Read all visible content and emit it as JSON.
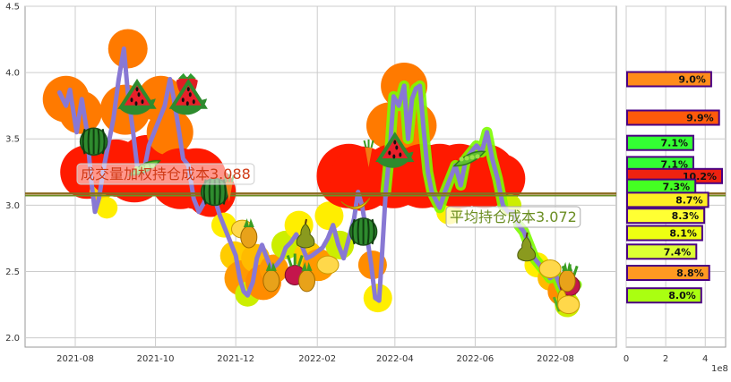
{
  "colors": {
    "background": "#ffffff",
    "grid": "#cccccc",
    "axis": "#999999",
    "price_line": "#8878d4",
    "avg_line": "#8b6a1f",
    "avg_line_inner": "#6b8e23",
    "bar_edge": "#4b0082"
  },
  "chart_data": [
    {
      "type": "line",
      "x_ticks": [
        "2021-08",
        "2021-10",
        "2021-12",
        "2022-02",
        "2022-04",
        "2022-06",
        "2022-08"
      ],
      "y_ticks": [
        "2.0",
        "2.5",
        "3.0",
        "3.5",
        "4.0",
        "4.5"
      ],
      "ylim": [
        1.93,
        4.5
      ],
      "series": [
        {
          "values": [
            [
              "2021-07-20",
              3.85
            ],
            [
              "2021-07-25",
              3.75
            ],
            [
              "2021-07-28",
              3.87
            ],
            [
              "2021-08-02",
              3.55
            ],
            [
              "2021-08-06",
              3.8
            ],
            [
              "2021-08-10",
              3.55
            ],
            [
              "2021-08-13",
              3.2
            ],
            [
              "2021-08-16",
              2.95
            ],
            [
              "2021-08-19",
              3.05
            ],
            [
              "2021-08-23",
              3.3
            ],
            [
              "2021-08-26",
              3.45
            ],
            [
              "2021-08-30",
              3.65
            ],
            [
              "2021-09-03",
              3.95
            ],
            [
              "2021-09-07",
              4.18
            ],
            [
              "2021-09-10",
              3.85
            ],
            [
              "2021-09-14",
              3.55
            ],
            [
              "2021-09-17",
              3.3
            ],
            [
              "2021-09-22",
              3.25
            ],
            [
              "2021-09-26",
              3.45
            ],
            [
              "2021-09-30",
              3.55
            ],
            [
              "2021-10-08",
              3.75
            ],
            [
              "2021-10-12",
              3.95
            ],
            [
              "2021-10-15",
              3.8
            ],
            [
              "2021-10-19",
              3.55
            ],
            [
              "2021-10-22",
              3.35
            ],
            [
              "2021-10-26",
              3.3
            ],
            [
              "2021-10-30",
              3.05
            ],
            [
              "2021-11-03",
              2.95
            ],
            [
              "2021-11-07",
              3.02
            ],
            [
              "2021-11-11",
              3.15
            ],
            [
              "2021-11-15",
              3.05
            ],
            [
              "2021-11-19",
              2.92
            ],
            [
              "2021-11-23",
              2.82
            ],
            [
              "2021-11-27",
              2.72
            ],
            [
              "2021-12-01",
              2.62
            ],
            [
              "2021-12-04",
              2.45
            ],
            [
              "2021-12-07",
              2.35
            ],
            [
              "2021-12-10",
              2.32
            ],
            [
              "2021-12-14",
              2.42
            ],
            [
              "2021-12-17",
              2.6
            ],
            [
              "2021-12-21",
              2.7
            ],
            [
              "2021-12-24",
              2.62
            ],
            [
              "2021-12-28",
              2.52
            ],
            [
              "2022-01-01",
              2.55
            ],
            [
              "2022-01-05",
              2.6
            ],
            [
              "2022-01-08",
              2.68
            ],
            [
              "2022-01-12",
              2.72
            ],
            [
              "2022-01-16",
              2.78
            ],
            [
              "2022-01-20",
              2.7
            ],
            [
              "2022-01-24",
              2.6
            ],
            [
              "2022-01-28",
              2.62
            ],
            [
              "2022-02-05",
              2.68
            ],
            [
              "2022-02-09",
              2.75
            ],
            [
              "2022-02-13",
              2.85
            ],
            [
              "2022-02-17",
              2.7
            ],
            [
              "2022-02-21",
              2.6
            ],
            [
              "2022-02-25",
              2.75
            ],
            [
              "2022-03-01",
              2.9
            ],
            [
              "2022-03-04",
              3.1
            ],
            [
              "2022-03-07",
              3.0
            ],
            [
              "2022-03-10",
              2.82
            ],
            [
              "2022-03-14",
              2.55
            ],
            [
              "2022-03-17",
              2.3
            ],
            [
              "2022-03-20",
              2.28
            ],
            [
              "2022-03-22",
              2.6
            ],
            [
              "2022-03-25",
              3.1
            ],
            [
              "2022-03-28",
              3.4
            ],
            [
              "2022-03-31",
              3.82
            ],
            [
              "2022-04-04",
              3.75
            ],
            [
              "2022-04-08",
              3.9
            ],
            [
              "2022-04-11",
              3.5
            ],
            [
              "2022-04-14",
              3.8
            ],
            [
              "2022-04-17",
              3.88
            ],
            [
              "2022-04-20",
              3.9
            ],
            [
              "2022-04-23",
              3.55
            ],
            [
              "2022-04-26",
              3.25
            ],
            [
              "2022-04-29",
              3.1
            ],
            [
              "2022-05-05",
              2.98
            ],
            [
              "2022-05-09",
              3.1
            ],
            [
              "2022-05-13",
              3.2
            ],
            [
              "2022-05-17",
              3.3
            ],
            [
              "2022-05-21",
              3.15
            ],
            [
              "2022-05-25",
              3.35
            ],
            [
              "2022-05-29",
              3.4
            ],
            [
              "2022-06-02",
              3.45
            ],
            [
              "2022-06-06",
              3.4
            ],
            [
              "2022-06-10",
              3.55
            ],
            [
              "2022-06-14",
              3.35
            ],
            [
              "2022-06-18",
              3.2
            ],
            [
              "2022-06-22",
              3.0
            ],
            [
              "2022-06-26",
              2.95
            ],
            [
              "2022-06-30",
              2.95
            ],
            [
              "2022-07-04",
              2.85
            ],
            [
              "2022-07-08",
              2.8
            ],
            [
              "2022-07-12",
              2.7
            ],
            [
              "2022-07-16",
              2.6
            ],
            [
              "2022-07-20",
              2.55
            ],
            [
              "2022-07-24",
              2.5
            ],
            [
              "2022-07-28",
              2.45
            ],
            [
              "2022-08-01",
              2.48
            ],
            [
              "2022-08-05",
              2.38
            ],
            [
              "2022-08-09",
              2.3
            ],
            [
              "2022-08-13",
              2.35
            ],
            [
              "2022-08-17",
              2.4
            ]
          ]
        }
      ],
      "reference_lines": [
        {
          "label": "成交量加权持仓成本3.088",
          "value": 3.088
        },
        {
          "label": "平均持仓成本3.072",
          "value": 3.072
        }
      ]
    },
    {
      "type": "bar",
      "orientation": "horizontal",
      "x_ticks": [
        "0",
        "2",
        "4"
      ],
      "x_scale_label": "1e8",
      "xlim": [
        0,
        4.85
      ],
      "ylim": [
        1.93,
        4.5
      ],
      "bars": [
        {
          "price": 3.95,
          "value": 4.3,
          "label": "9.0%",
          "color": "#ff8c1a"
        },
        {
          "price": 3.66,
          "value": 4.7,
          "label": "9.9%",
          "color": "#ff5a0a"
        },
        {
          "price": 3.47,
          "value": 3.4,
          "label": "7.1%",
          "color": "#33ff33"
        },
        {
          "price": 3.31,
          "value": 3.4,
          "label": "7.1%",
          "color": "#33ff33"
        },
        {
          "price": 3.22,
          "value": 4.85,
          "label": "10.2%",
          "color": "#ee2211"
        },
        {
          "price": 3.14,
          "value": 3.5,
          "label": "7.3%",
          "color": "#44ff22"
        },
        {
          "price": 3.04,
          "value": 4.15,
          "label": "8.7%",
          "color": "#ffee22"
        },
        {
          "price": 2.92,
          "value": 3.95,
          "label": "8.3%",
          "color": "#ffff33"
        },
        {
          "price": 2.79,
          "value": 3.85,
          "label": "8.1%",
          "color": "#eeff11"
        },
        {
          "price": 2.65,
          "value": 3.55,
          "label": "7.4%",
          "color": "#ddff33"
        },
        {
          "price": 2.49,
          "value": 4.2,
          "label": "8.8%",
          "color": "#ff9922"
        },
        {
          "price": 2.32,
          "value": 3.8,
          "label": "8.0%",
          "color": "#aaff11"
        }
      ]
    }
  ],
  "blobs": [
    {
      "date": "2021-07-25",
      "price": 3.8,
      "r": 26,
      "color": "#ff7a00"
    },
    {
      "date": "2021-08-05",
      "price": 3.7,
      "r": 24,
      "color": "#ff7a00"
    },
    {
      "date": "2021-08-10",
      "price": 3.25,
      "r": 30,
      "color": "#ff1a00"
    },
    {
      "date": "2021-08-20",
      "price": 3.1,
      "r": 12,
      "color": "#ffcc00"
    },
    {
      "date": "2021-08-25",
      "price": 2.98,
      "r": 12,
      "color": "#ffee00"
    },
    {
      "date": "2021-09-01",
      "price": 3.28,
      "r": 32,
      "color": "#ff1a00"
    },
    {
      "date": "2021-09-08",
      "price": 3.72,
      "r": 28,
      "color": "#ff7a00"
    },
    {
      "date": "2021-09-10",
      "price": 4.18,
      "r": 22,
      "color": "#ff7a00"
    },
    {
      "date": "2021-09-15",
      "price": 3.25,
      "r": 34,
      "color": "#ff1a00"
    },
    {
      "date": "2021-09-25",
      "price": 3.3,
      "r": 34,
      "color": "#ff1a00"
    },
    {
      "date": "2021-10-05",
      "price": 3.8,
      "r": 26,
      "color": "#ff7a00"
    },
    {
      "date": "2021-10-12",
      "price": 3.55,
      "r": 26,
      "color": "#ff7a00"
    },
    {
      "date": "2021-10-20",
      "price": 3.2,
      "r": 34,
      "color": "#ff1a00"
    },
    {
      "date": "2021-11-01",
      "price": 3.2,
      "r": 34,
      "color": "#ff1a00"
    },
    {
      "date": "2021-11-12",
      "price": 3.1,
      "r": 28,
      "color": "#ff1a00"
    },
    {
      "date": "2021-11-22",
      "price": 2.85,
      "r": 14,
      "color": "#ffee00"
    },
    {
      "date": "2021-11-30",
      "price": 2.62,
      "r": 16,
      "color": "#ffcc00"
    },
    {
      "date": "2021-12-06",
      "price": 2.45,
      "r": 20,
      "color": "#ff9900"
    },
    {
      "date": "2021-12-10",
      "price": 2.33,
      "r": 14,
      "color": "#ccee00"
    },
    {
      "date": "2021-12-16",
      "price": 2.6,
      "r": 16,
      "color": "#ffbb00"
    },
    {
      "date": "2021-12-22",
      "price": 2.42,
      "r": 20,
      "color": "#ff8c00"
    },
    {
      "date": "2021-12-30",
      "price": 2.52,
      "r": 16,
      "color": "#ff9900"
    },
    {
      "date": "2022-01-08",
      "price": 2.7,
      "r": 16,
      "color": "#ccee00"
    },
    {
      "date": "2022-01-18",
      "price": 2.85,
      "r": 16,
      "color": "#ffee00"
    },
    {
      "date": "2022-01-25",
      "price": 2.62,
      "r": 16,
      "color": "#ffcc00"
    },
    {
      "date": "2022-02-02",
      "price": 2.55,
      "r": 18,
      "color": "#ff9900"
    },
    {
      "date": "2022-02-10",
      "price": 2.92,
      "r": 16,
      "color": "#ffee00"
    },
    {
      "date": "2022-02-18",
      "price": 2.7,
      "r": 16,
      "color": "#ccee00"
    },
    {
      "date": "2022-02-25",
      "price": 3.22,
      "r": 36,
      "color": "#ff1a00"
    },
    {
      "date": "2022-03-07",
      "price": 3.2,
      "r": 36,
      "color": "#ff1a00"
    },
    {
      "date": "2022-03-15",
      "price": 2.55,
      "r": 16,
      "color": "#ff8c00"
    },
    {
      "date": "2022-03-19",
      "price": 2.3,
      "r": 16,
      "color": "#ffee00"
    },
    {
      "date": "2022-03-28",
      "price": 3.6,
      "r": 26,
      "color": "#ff7a00"
    },
    {
      "date": "2022-03-31",
      "price": 3.22,
      "r": 36,
      "color": "#ff1a00"
    },
    {
      "date": "2022-04-08",
      "price": 3.9,
      "r": 26,
      "color": "#ff7a00"
    },
    {
      "date": "2022-04-15",
      "price": 3.6,
      "r": 26,
      "color": "#ff7a00"
    },
    {
      "date": "2022-04-22",
      "price": 3.22,
      "r": 36,
      "color": "#ff1a00"
    },
    {
      "date": "2022-05-05",
      "price": 3.22,
      "r": 36,
      "color": "#ff1a00"
    },
    {
      "date": "2022-05-12",
      "price": 2.95,
      "r": 14,
      "color": "#ffee00"
    },
    {
      "date": "2022-05-20",
      "price": 3.22,
      "r": 36,
      "color": "#ff1a00"
    },
    {
      "date": "2022-06-08",
      "price": 3.22,
      "r": 36,
      "color": "#ff1a00"
    },
    {
      "date": "2022-06-20",
      "price": 3.2,
      "r": 28,
      "color": "#ff1a00"
    },
    {
      "date": "2022-06-28",
      "price": 3.0,
      "r": 12,
      "color": "#ccee00"
    },
    {
      "date": "2022-07-18",
      "price": 2.55,
      "r": 14,
      "color": "#ffee00"
    },
    {
      "date": "2022-07-28",
      "price": 2.45,
      "r": 14,
      "color": "#ffbb00"
    },
    {
      "date": "2022-08-06",
      "price": 2.35,
      "r": 16,
      "color": "#ff8c00"
    },
    {
      "date": "2022-08-10",
      "price": 2.25,
      "r": 14,
      "color": "#ccee00"
    }
  ],
  "glow_segments": [
    {
      "start": "2022-03-24",
      "end": "2022-06-24",
      "color": "#7cfc00"
    },
    {
      "start": "2022-07-04",
      "end": "2022-08-17",
      "color": "#7cfc00"
    }
  ],
  "fruits": [
    {
      "type": "watermelon",
      "date": "2021-08-15",
      "price": 3.48
    },
    {
      "type": "watermelon-slice",
      "date": "2021-09-17",
      "price": 3.78
    },
    {
      "type": "strawberry",
      "date": "2021-10-25",
      "price": 3.9
    },
    {
      "type": "watermelon-slice",
      "date": "2021-10-26",
      "price": 3.78
    },
    {
      "type": "pea-pod",
      "date": "2021-09-22",
      "price": 3.28
    },
    {
      "type": "watermelon",
      "date": "2021-11-15",
      "price": 3.1
    },
    {
      "type": "carrot",
      "date": "2021-11-26",
      "price": 3.12
    },
    {
      "type": "lemon",
      "date": "2021-12-06",
      "price": 2.82
    },
    {
      "type": "pineapple",
      "date": "2021-12-11",
      "price": 2.78
    },
    {
      "type": "pear",
      "date": "2022-01-23",
      "price": 2.78
    },
    {
      "type": "beet",
      "date": "2022-01-15",
      "price": 2.5
    },
    {
      "type": "pineapple",
      "date": "2022-01-24",
      "price": 2.45
    },
    {
      "type": "pineapple",
      "date": "2021-12-28",
      "price": 2.45
    },
    {
      "type": "lemon",
      "date": "2022-02-09",
      "price": 2.55
    },
    {
      "type": "banana",
      "date": "2022-03-02",
      "price": 3.0
    },
    {
      "type": "watermelon",
      "date": "2022-03-08",
      "price": 2.8
    },
    {
      "type": "carrot",
      "date": "2022-03-12",
      "price": 3.38
    },
    {
      "type": "watermelon-slice",
      "date": "2022-04-01",
      "price": 3.38
    },
    {
      "type": "pea-pod",
      "date": "2022-05-27",
      "price": 3.35
    },
    {
      "type": "pear",
      "date": "2022-07-10",
      "price": 2.68
    },
    {
      "type": "lemon",
      "date": "2022-07-28",
      "price": 2.52
    },
    {
      "type": "beet",
      "date": "2022-08-12",
      "price": 2.42
    },
    {
      "type": "pineapple",
      "date": "2022-08-10",
      "price": 2.45
    },
    {
      "type": "corn",
      "date": "2022-08-06",
      "price": 2.28
    },
    {
      "type": "lemon",
      "date": "2022-08-11",
      "price": 2.25
    }
  ]
}
